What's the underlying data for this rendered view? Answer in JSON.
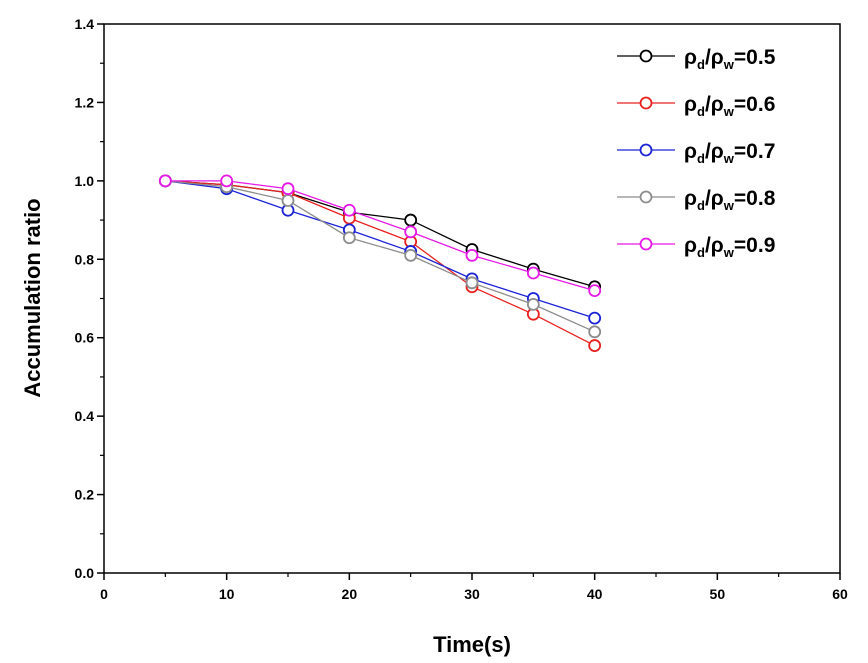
{
  "chart_data": {
    "type": "line",
    "xlabel": "Time(s)",
    "ylabel": "Accumulation ratio",
    "xlim": [
      0,
      60
    ],
    "ylim": [
      0,
      1.4
    ],
    "xticks": [
      "0",
      "10",
      "20",
      "30",
      "40",
      "50",
      "60"
    ],
    "yticks": [
      "0.0",
      "0.2",
      "0.4",
      "0.6",
      "0.8",
      "1.0",
      "1.2",
      "1.4"
    ],
    "grid": false,
    "legend_position": "top-right",
    "marker": "open-circle",
    "x": [
      5,
      10,
      15,
      20,
      25,
      30,
      35,
      40
    ],
    "series": [
      {
        "name": "ρd/ρw=0.5",
        "legend": {
          "rho": "ρ",
          "num_sub": "d",
          "slash": "/",
          "den_sub": "w",
          "value": "=0.5"
        },
        "color": "#000000",
        "values": [
          1.0,
          0.99,
          0.97,
          0.92,
          0.9,
          0.825,
          0.775,
          0.73
        ]
      },
      {
        "name": "ρd/ρw=0.6",
        "legend": {
          "rho": "ρ",
          "num_sub": "d",
          "slash": "/",
          "den_sub": "w",
          "value": "=0.6"
        },
        "color": "#e8211f",
        "values": [
          1.0,
          0.99,
          0.97,
          0.905,
          0.845,
          0.73,
          0.66,
          0.58
        ]
      },
      {
        "name": "ρd/ρw=0.7",
        "legend": {
          "rho": "ρ",
          "num_sub": "d",
          "slash": "/",
          "den_sub": "w",
          "value": "=0.7"
        },
        "color": "#1b23d6",
        "values": [
          1.0,
          0.98,
          0.925,
          0.875,
          0.82,
          0.75,
          0.7,
          0.65
        ]
      },
      {
        "name": "ρd/ρw=0.8",
        "legend": {
          "rho": "ρ",
          "num_sub": "d",
          "slash": "/",
          "den_sub": "w",
          "value": "=0.8"
        },
        "color": "#8c8c8c",
        "values": [
          1.0,
          0.985,
          0.95,
          0.855,
          0.81,
          0.74,
          0.685,
          0.615
        ]
      },
      {
        "name": "ρd/ρw=0.9",
        "legend": {
          "rho": "ρ",
          "num_sub": "d",
          "slash": "/",
          "den_sub": "w",
          "value": "=0.9"
        },
        "color": "#e619e6",
        "values": [
          1.0,
          1.0,
          0.98,
          0.925,
          0.87,
          0.81,
          0.765,
          0.72
        ]
      }
    ]
  }
}
